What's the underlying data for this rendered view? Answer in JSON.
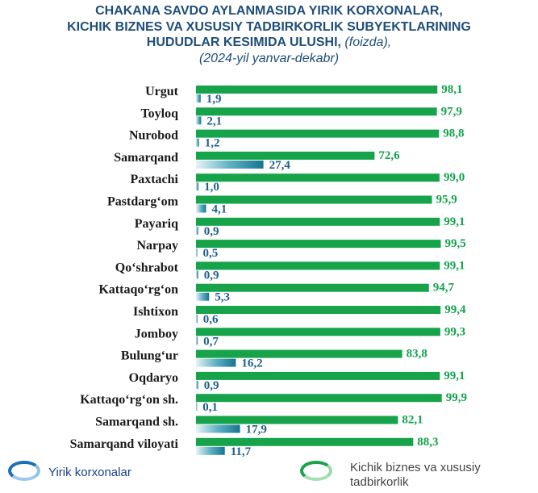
{
  "title": {
    "line1": "CHAKANA SAVDO AYLANMASIDA YIRIK KORXONALAR,",
    "line2": "KICHIK BIZNES VA XUSUSIY TADBIRKORLIK SUBYEKTLARINING",
    "line3_bold": "HUDUDLAR KESIMIDA ULUSHI,",
    "line3_italic": "(foizda),",
    "line4": "(2024-yil yanvar-dekabr)"
  },
  "colors": {
    "green": "#16a34a",
    "blue": "#1f7a96",
    "title": "#1f4e79"
  },
  "chart_data": {
    "type": "bar",
    "orientation": "horizontal",
    "categories": [
      "Urgut",
      "Toyloq",
      "Nurobod",
      "Samarqand",
      "Paxtachi",
      "Pastdarg‘om",
      "Payariq",
      "Narpay",
      "Qo‘shrabot",
      "Kattaqo‘rg‘on",
      "Ishtixon",
      "Jomboy",
      "Bulung‘ur",
      "Oqdaryo",
      "Kattaqo‘rg‘on sh.",
      "Samarqand sh.",
      "Samarqand viloyati"
    ],
    "series": [
      {
        "name": "Kichik biznes va xususiy tadbirkorlik",
        "values": [
          98.1,
          97.9,
          98.8,
          72.6,
          99.0,
          95.9,
          99.1,
          99.5,
          99.1,
          94.7,
          99.4,
          99.3,
          83.8,
          99.1,
          99.9,
          82.1,
          88.3
        ],
        "labels": [
          "98,1",
          "97,9",
          "98,8",
          "72,6",
          "99,0",
          "95,9",
          "99,1",
          "99,5",
          "99,1",
          "94,7",
          "99,4",
          "99,3",
          "83,8",
          "99,1",
          "99,9",
          "82,1",
          "88,3"
        ]
      },
      {
        "name": "Yirik korxonalar",
        "values": [
          1.9,
          2.1,
          1.2,
          27.4,
          1.0,
          4.1,
          0.9,
          0.5,
          0.9,
          5.3,
          0.6,
          0.7,
          16.2,
          0.9,
          0.1,
          17.9,
          11.7
        ],
        "labels": [
          "1,9",
          "2,1",
          "1,2",
          "27,4",
          "1,0",
          "4,1",
          "0,9",
          "0,5",
          "0,9",
          "5,3",
          "0,6",
          "0,7",
          "16,2",
          "0,9",
          "0,1",
          "17,9",
          "11,7"
        ]
      }
    ],
    "xlim": [
      0,
      100
    ],
    "grid": false,
    "legend_placement": "bottom"
  },
  "legend": {
    "blue_label": "Yirik korxonalar",
    "green_label": "Kichik biznes va xususiy tadbirkorlik"
  }
}
